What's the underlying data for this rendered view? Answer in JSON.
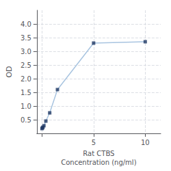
{
  "chart_data": {
    "type": "line",
    "x": [
      0,
      0.047,
      0.094,
      0.188,
      0.375,
      0.75,
      1.5,
      5,
      10
    ],
    "series": [
      {
        "type": "line",
        "color": "#a8c4e0",
        "values": [
          0.175,
          0.2,
          0.225,
          0.28,
          0.45,
          0.75,
          1.6,
          3.3,
          3.35
        ]
      },
      {
        "type": "scatter",
        "marker": "square",
        "color": "#1f3864",
        "values": [
          0.175,
          0.2,
          0.225,
          0.28,
          0.45,
          0.75,
          1.6,
          3.3,
          3.35
        ]
      }
    ],
    "xlabel": "Rat CTBS\nConcentration (ng/ml)",
    "ylabel": "OD",
    "xlim": [
      -0.5,
      11.5
    ],
    "xticks": [
      {
        "value": 0,
        "label": ""
      },
      5,
      10
    ],
    "ylim": [
      0,
      4.5
    ],
    "yticks": [
      0.5,
      {
        "value": 1,
        "label": "1.0"
      },
      1.5,
      {
        "value": 2,
        "label": "2.0"
      },
      2.5,
      {
        "value": 3,
        "label": "3.0"
      },
      3.5,
      {
        "value": 4,
        "label": "4.0"
      }
    ],
    "grid": true
  }
}
